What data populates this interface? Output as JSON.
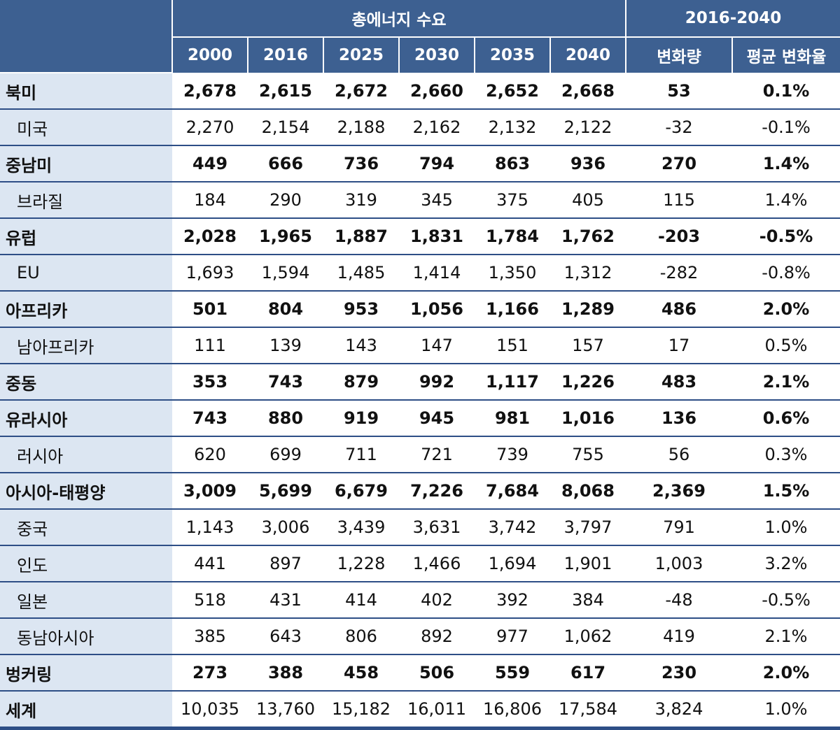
{
  "header": {
    "group_demand": "총에너지 수요",
    "group_change": "2016-2040",
    "years": [
      "2000",
      "2016",
      "2025",
      "2030",
      "2035",
      "2040"
    ],
    "change_amount": "변화량",
    "avg_change": "평균 변화율"
  },
  "rows": [
    {
      "name": "북미",
      "bold": true,
      "values": [
        "2,678",
        "2,615",
        "2,672",
        "2,660",
        "2,652",
        "2,668"
      ],
      "change": "53",
      "avg": "0.1%"
    },
    {
      "name": "미국",
      "bold": false,
      "values": [
        "2,270",
        "2,154",
        "2,188",
        "2,162",
        "2,132",
        "2,122"
      ],
      "change": "-32",
      "avg": "-0.1%"
    },
    {
      "name": "중남미",
      "bold": true,
      "values": [
        "449",
        "666",
        "736",
        "794",
        "863",
        "936"
      ],
      "change": "270",
      "avg": "1.4%"
    },
    {
      "name": "브라질",
      "bold": false,
      "values": [
        "184",
        "290",
        "319",
        "345",
        "375",
        "405"
      ],
      "change": "115",
      "avg": "1.4%"
    },
    {
      "name": "유럽",
      "bold": true,
      "values": [
        "2,028",
        "1,965",
        "1,887",
        "1,831",
        "1,784",
        "1,762"
      ],
      "change": "-203",
      "avg": "-0.5%"
    },
    {
      "name": "EU",
      "bold": false,
      "values": [
        "1,693",
        "1,594",
        "1,485",
        "1,414",
        "1,350",
        "1,312"
      ],
      "change": "-282",
      "avg": "-0.8%"
    },
    {
      "name": "아프리카",
      "bold": true,
      "values": [
        "501",
        "804",
        "953",
        "1,056",
        "1,166",
        "1,289"
      ],
      "change": "486",
      "avg": "2.0%"
    },
    {
      "name": "남아프리카",
      "bold": false,
      "values": [
        "111",
        "139",
        "143",
        "147",
        "151",
        "157"
      ],
      "change": "17",
      "avg": "0.5%"
    },
    {
      "name": "중동",
      "bold": true,
      "values": [
        "353",
        "743",
        "879",
        "992",
        "1,117",
        "1,226"
      ],
      "change": "483",
      "avg": "2.1%"
    },
    {
      "name": "유라시아",
      "bold": true,
      "values": [
        "743",
        "880",
        "919",
        "945",
        "981",
        "1,016"
      ],
      "change": "136",
      "avg": "0.6%"
    },
    {
      "name": "러시아",
      "bold": false,
      "values": [
        "620",
        "699",
        "711",
        "721",
        "739",
        "755"
      ],
      "change": "56",
      "avg": "0.3%"
    },
    {
      "name": "아시아-태평양",
      "bold": true,
      "values": [
        "3,009",
        "5,699",
        "6,679",
        "7,226",
        "7,684",
        "8,068"
      ],
      "change": "2,369",
      "avg": "1.5%"
    },
    {
      "name": "중국",
      "bold": false,
      "values": [
        "1,143",
        "3,006",
        "3,439",
        "3,631",
        "3,742",
        "3,797"
      ],
      "change": "791",
      "avg": "1.0%"
    },
    {
      "name": "인도",
      "bold": false,
      "values": [
        "441",
        "897",
        "1,228",
        "1,466",
        "1,694",
        "1,901"
      ],
      "change": "1,003",
      "avg": "3.2%"
    },
    {
      "name": "일본",
      "bold": false,
      "values": [
        "518",
        "431",
        "414",
        "402",
        "392",
        "384"
      ],
      "change": "-48",
      "avg": "-0.5%"
    },
    {
      "name": "동남아시아",
      "bold": false,
      "values": [
        "385",
        "643",
        "806",
        "892",
        "977",
        "1,062"
      ],
      "change": "419",
      "avg": "2.1%"
    },
    {
      "name": "벙커링",
      "bold": true,
      "values": [
        "273",
        "388",
        "458",
        "506",
        "559",
        "617"
      ],
      "change": "230",
      "avg": "2.0%"
    },
    {
      "name": "세계",
      "bold": false,
      "name_bold": true,
      "values": [
        "10,035",
        "13,760",
        "15,182",
        "16,011",
        "16,806",
        "17,584"
      ],
      "change": "3,824",
      "avg": "1.0%"
    }
  ]
}
